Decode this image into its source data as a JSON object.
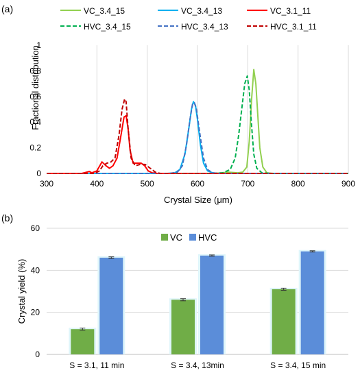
{
  "panel_a": {
    "label": "(a)",
    "chart_data": {
      "type": "line",
      "xlabel": "Crystal Size (μm)",
      "ylabel": "Fractional distribution",
      "xlim": [
        300,
        900
      ],
      "ylim": [
        0,
        1
      ],
      "xticks": [
        "300",
        "400",
        "500",
        "600",
        "700",
        "800",
        "900"
      ],
      "yticks": [
        "0",
        "0.2",
        "0.4",
        "0.6",
        "0.8",
        "1"
      ],
      "grid": "vertical",
      "legend_position": "top",
      "series": [
        {
          "name": "VC_3.4_15",
          "color": "#92d050",
          "style": "solid",
          "x": [
            600,
            630,
            650,
            660,
            668,
            680,
            690,
            698,
            703,
            708,
            712,
            716,
            720,
            724,
            730,
            738,
            750,
            800,
            900
          ],
          "y": [
            0,
            0,
            0.005,
            0.01,
            0.008,
            0.005,
            0.01,
            0.05,
            0.25,
            0.6,
            0.81,
            0.7,
            0.45,
            0.2,
            0.05,
            0.005,
            0,
            0,
            0
          ]
        },
        {
          "name": "VC_3.4_13",
          "color": "#00b0f0",
          "style": "solid",
          "x": [
            300,
            540,
            555,
            565,
            575,
            582,
            588,
            592,
            596,
            600,
            606,
            612,
            620,
            630,
            640,
            660,
            900
          ],
          "y": [
            0,
            0,
            0.005,
            0.03,
            0.15,
            0.33,
            0.5,
            0.56,
            0.53,
            0.42,
            0.22,
            0.08,
            0.02,
            0.005,
            0,
            0,
            0
          ]
        },
        {
          "name": "VC_3.1_11",
          "color": "#ff0000",
          "style": "solid",
          "x": [
            300,
            370,
            380,
            385,
            390,
            400,
            410,
            418,
            425,
            432,
            440,
            448,
            454,
            458,
            462,
            466,
            472,
            480,
            488,
            495,
            502,
            510,
            520,
            900
          ],
          "y": [
            0,
            0,
            0.01,
            0.015,
            0.005,
            0.02,
            0.09,
            0.06,
            0.04,
            0.06,
            0.12,
            0.3,
            0.44,
            0.45,
            0.35,
            0.18,
            0.08,
            0.08,
            0.08,
            0.06,
            0.02,
            0.005,
            0,
            0
          ]
        },
        {
          "name": "HVC_3.4_15",
          "color": "#00b050",
          "style": "dashed",
          "x": [
            300,
            630,
            650,
            665,
            675,
            682,
            688,
            694,
            699,
            703,
            707,
            712,
            718,
            728,
            745,
            900
          ],
          "y": [
            0,
            0,
            0.005,
            0.03,
            0.12,
            0.3,
            0.5,
            0.7,
            0.76,
            0.65,
            0.4,
            0.15,
            0.04,
            0.005,
            0,
            0
          ]
        },
        {
          "name": "HVC_3.4_13",
          "color": "#4472c4",
          "style": "dashed",
          "x": [
            300,
            545,
            560,
            570,
            578,
            585,
            590,
            594,
            598,
            604,
            612,
            620,
            630,
            645,
            900
          ],
          "y": [
            0,
            0,
            0.01,
            0.06,
            0.22,
            0.42,
            0.54,
            0.55,
            0.5,
            0.33,
            0.12,
            0.03,
            0.005,
            0,
            0
          ]
        },
        {
          "name": "HVC_3.1_11",
          "color": "#c00000",
          "style": "dashed",
          "x": [
            300,
            395,
            405,
            412,
            420,
            428,
            436,
            444,
            450,
            455,
            458,
            462,
            468,
            476,
            486,
            496,
            506,
            516,
            526,
            900
          ],
          "y": [
            0,
            0,
            0.02,
            0.06,
            0.08,
            0.09,
            0.12,
            0.3,
            0.5,
            0.58,
            0.56,
            0.35,
            0.12,
            0.06,
            0.07,
            0.07,
            0.04,
            0.01,
            0,
            0
          ]
        }
      ]
    }
  },
  "panel_b": {
    "label": "(b)",
    "chart_data": {
      "type": "bar",
      "ylabel": "Crystal yield (%)",
      "ylim": [
        0,
        60
      ],
      "yticks": [
        "0",
        "20",
        "40",
        "60"
      ],
      "grid": "horizontal",
      "legend_position": "top-center",
      "categories": [
        "S = 3.1, 11 min",
        "S = 3.4, 13min",
        "S = 3.4, 15 min"
      ],
      "series": [
        {
          "name": "VC",
          "color": "#70ad47",
          "values": [
            12,
            26,
            31
          ],
          "errors": [
            0.5,
            0.5,
            0.5
          ]
        },
        {
          "name": "HVC",
          "color": "#5b8dd9",
          "values": [
            46,
            47,
            49
          ],
          "errors": [
            0.4,
            0.3,
            0.3
          ]
        }
      ]
    }
  }
}
